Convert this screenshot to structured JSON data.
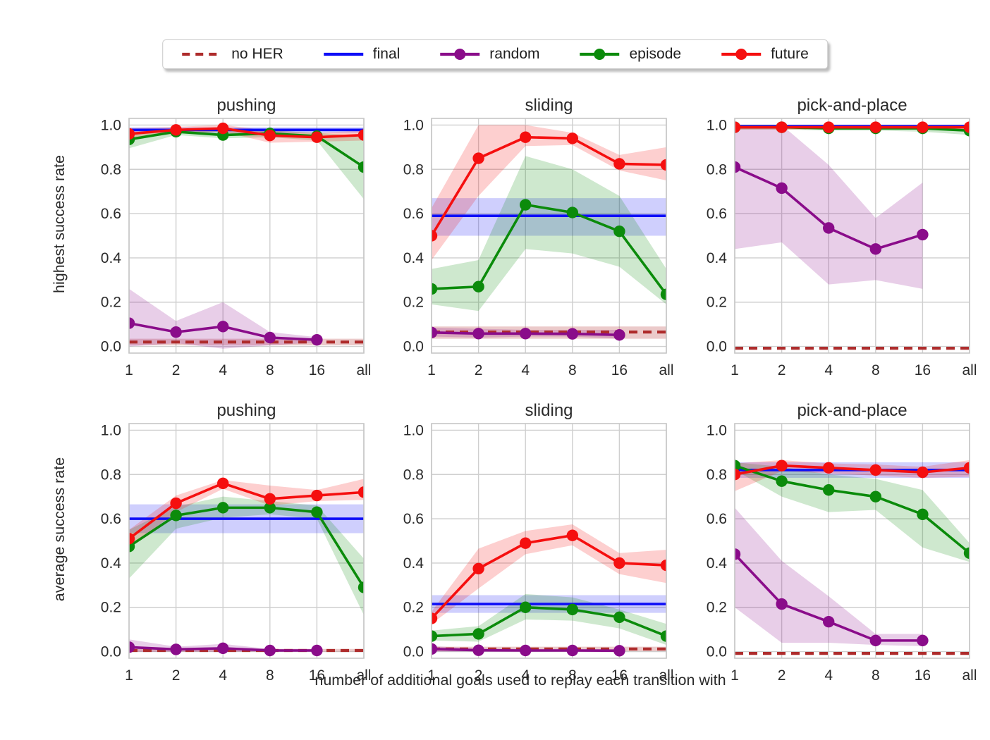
{
  "figure": {
    "xlabel": "number of additional goals used to replay each transition with",
    "row_ylabels": [
      "highest success rate",
      "average success rate"
    ]
  },
  "legend": {
    "items": [
      {
        "label": "no HER",
        "dashed": true,
        "marker": false
      },
      {
        "label": "final",
        "dashed": false,
        "marker": false
      },
      {
        "label": "random",
        "dashed": false,
        "marker": true
      },
      {
        "label": "episode",
        "dashed": false,
        "marker": true
      },
      {
        "label": "future",
        "dashed": false,
        "marker": true
      }
    ]
  },
  "palette": {
    "no HER": "#AE2C2C",
    "final": "#0E0EF7",
    "random": "#8A0C8A",
    "episode": "#0B8B0B",
    "future": "#F50F0F",
    "grid": "#CFCFCF",
    "spine": "#C6C6C6"
  },
  "chart_data": [
    {
      "type": "line",
      "title": "pushing",
      "ylabel": "highest success rate",
      "categories": [
        "1",
        "2",
        "4",
        "8",
        "16",
        "all"
      ],
      "ylim": [
        -0.03,
        1.03
      ],
      "yticks": [
        0.0,
        0.2,
        0.4,
        0.6,
        0.8,
        1.0
      ],
      "ytick_labels": [
        "0.0",
        "0.2",
        "0.4",
        "0.6",
        "0.8",
        "1.0"
      ],
      "series": [
        {
          "name": "no HER",
          "dashed": true,
          "marker": false,
          "values": [
            0.02,
            0.02,
            0.02,
            0.02,
            0.02,
            0.02
          ],
          "band_lo": [
            0.005,
            0.005,
            0.005,
            0.005,
            0.005,
            0.005
          ],
          "band_hi": [
            0.035,
            0.035,
            0.035,
            0.035,
            0.035,
            0.035
          ]
        },
        {
          "name": "final",
          "dashed": false,
          "marker": false,
          "values": [
            0.978,
            0.978,
            0.978,
            0.978,
            0.978,
            0.978
          ],
          "band_lo": [
            0.965,
            0.965,
            0.965,
            0.965,
            0.965,
            0.965
          ],
          "band_hi": [
            0.99,
            0.99,
            0.99,
            0.99,
            0.99,
            0.99
          ]
        },
        {
          "name": "random",
          "dashed": false,
          "marker": true,
          "values": [
            0.105,
            0.065,
            0.09,
            0.04,
            0.03
          ],
          "band_lo": [
            0.0,
            0.015,
            -0.01,
            0.005,
            0.018
          ],
          "band_hi": [
            0.26,
            0.115,
            0.2,
            0.065,
            0.042
          ]
        },
        {
          "name": "episode",
          "dashed": false,
          "marker": true,
          "values": [
            0.935,
            0.97,
            0.955,
            0.962,
            0.95,
            0.81
          ],
          "band_lo": [
            0.895,
            0.955,
            0.94,
            0.945,
            0.93,
            0.665
          ],
          "band_hi": [
            0.965,
            0.985,
            0.972,
            0.975,
            0.965,
            0.95
          ]
        },
        {
          "name": "future",
          "dashed": false,
          "marker": true,
          "values": [
            0.96,
            0.978,
            0.985,
            0.953,
            0.945,
            0.955
          ],
          "band_lo": [
            0.935,
            0.962,
            0.97,
            0.92,
            0.925,
            0.93
          ],
          "band_hi": [
            0.985,
            0.992,
            1.0,
            0.975,
            0.965,
            0.975
          ]
        }
      ]
    },
    {
      "type": "line",
      "title": "sliding",
      "ylabel": "highest success rate",
      "categories": [
        "1",
        "2",
        "4",
        "8",
        "16",
        "all"
      ],
      "ylim": [
        -0.03,
        1.03
      ],
      "yticks": [
        0.0,
        0.2,
        0.4,
        0.6,
        0.8,
        1.0
      ],
      "ytick_labels": [
        "0.0",
        "0.2",
        "0.4",
        "0.6",
        "0.8",
        "1.0"
      ],
      "series": [
        {
          "name": "no HER",
          "dashed": true,
          "marker": false,
          "values": [
            0.065,
            0.065,
            0.065,
            0.065,
            0.065,
            0.065
          ],
          "band_lo": [
            0.035,
            0.035,
            0.035,
            0.035,
            0.035,
            0.035
          ],
          "band_hi": [
            0.09,
            0.09,
            0.09,
            0.09,
            0.09,
            0.09
          ]
        },
        {
          "name": "final",
          "dashed": false,
          "marker": false,
          "values": [
            0.59,
            0.59,
            0.59,
            0.59,
            0.59,
            0.59
          ],
          "band_lo": [
            0.5,
            0.5,
            0.5,
            0.5,
            0.5,
            0.5
          ],
          "band_hi": [
            0.67,
            0.67,
            0.67,
            0.67,
            0.67,
            0.67
          ]
        },
        {
          "name": "random",
          "dashed": false,
          "marker": true,
          "values": [
            0.063,
            0.058,
            0.058,
            0.057,
            0.052
          ],
          "band_lo": [
            0.045,
            0.04,
            0.045,
            0.045,
            0.035
          ],
          "band_hi": [
            0.085,
            0.08,
            0.075,
            0.075,
            0.075
          ]
        },
        {
          "name": "episode",
          "dashed": false,
          "marker": true,
          "values": [
            0.26,
            0.27,
            0.64,
            0.605,
            0.52,
            0.235
          ],
          "band_lo": [
            0.19,
            0.16,
            0.44,
            0.42,
            0.36,
            0.19
          ],
          "band_hi": [
            0.35,
            0.39,
            0.86,
            0.8,
            0.68,
            0.35
          ]
        },
        {
          "name": "future",
          "dashed": false,
          "marker": true,
          "values": [
            0.5,
            0.85,
            0.945,
            0.94,
            0.825,
            0.82
          ],
          "band_lo": [
            0.39,
            0.68,
            0.905,
            0.91,
            0.795,
            0.75
          ],
          "band_hi": [
            0.625,
            1.0,
            1.0,
            0.965,
            0.865,
            0.9
          ]
        }
      ]
    },
    {
      "type": "line",
      "title": "pick-and-place",
      "ylabel": "highest success rate",
      "categories": [
        "1",
        "2",
        "4",
        "8",
        "16",
        "all"
      ],
      "ylim": [
        -0.03,
        1.03
      ],
      "yticks": [
        0.0,
        0.2,
        0.4,
        0.6,
        0.8,
        1.0
      ],
      "ytick_labels": [
        "0.0",
        "0.2",
        "0.4",
        "0.6",
        "0.8",
        "1.0"
      ],
      "series": [
        {
          "name": "no HER",
          "dashed": true,
          "marker": false,
          "values": [
            -0.008,
            -0.008,
            -0.008,
            -0.008,
            -0.008,
            -0.008
          ]
        },
        {
          "name": "final",
          "dashed": false,
          "marker": false,
          "values": [
            0.995,
            0.995,
            0.995,
            0.995,
            0.995,
            0.995
          ],
          "band_lo": [
            0.988,
            0.988,
            0.988,
            0.988,
            0.988,
            0.988
          ],
          "band_hi": [
            1.0,
            1.0,
            1.0,
            1.0,
            1.0,
            1.0
          ]
        },
        {
          "name": "random",
          "dashed": false,
          "marker": true,
          "values": [
            0.81,
            0.715,
            0.535,
            0.44,
            0.505
          ],
          "band_lo": [
            0.44,
            0.47,
            0.28,
            0.3,
            0.26
          ],
          "band_hi": [
            1.0,
            1.0,
            0.82,
            0.58,
            0.74
          ]
        },
        {
          "name": "episode",
          "dashed": false,
          "marker": true,
          "values": [
            0.99,
            0.99,
            0.985,
            0.985,
            0.985,
            0.975
          ],
          "band_lo": [
            0.98,
            0.98,
            0.975,
            0.975,
            0.97,
            0.955
          ],
          "band_hi": [
            1.0,
            1.0,
            0.995,
            0.995,
            0.995,
            0.99
          ]
        },
        {
          "name": "future",
          "dashed": false,
          "marker": true,
          "values": [
            0.99,
            0.99,
            0.99,
            0.99,
            0.99,
            0.99
          ],
          "band_lo": [
            0.98,
            0.98,
            0.98,
            0.98,
            0.98,
            0.98
          ],
          "band_hi": [
            1.0,
            1.0,
            1.0,
            1.0,
            1.0,
            1.0
          ]
        }
      ]
    },
    {
      "type": "line",
      "title": "pushing",
      "ylabel": "average success rate",
      "categories": [
        "1",
        "2",
        "4",
        "8",
        "16",
        "all"
      ],
      "ylim": [
        -0.03,
        1.03
      ],
      "yticks": [
        0.0,
        0.2,
        0.4,
        0.6,
        0.8,
        1.0
      ],
      "ytick_labels": [
        "0.0",
        "0.2",
        "0.4",
        "0.6",
        "0.8",
        "1.0"
      ],
      "series": [
        {
          "name": "no HER",
          "dashed": true,
          "marker": false,
          "values": [
            0.005,
            0.005,
            0.005,
            0.005,
            0.005,
            0.005
          ],
          "band_lo": [
            0.0,
            0.0,
            0.0,
            0.0,
            0.0,
            0.0
          ],
          "band_hi": [
            0.012,
            0.012,
            0.012,
            0.012,
            0.012,
            0.012
          ]
        },
        {
          "name": "final",
          "dashed": false,
          "marker": false,
          "values": [
            0.6,
            0.6,
            0.6,
            0.6,
            0.6,
            0.6
          ],
          "band_lo": [
            0.535,
            0.535,
            0.535,
            0.535,
            0.535,
            0.535
          ],
          "band_hi": [
            0.665,
            0.665,
            0.665,
            0.665,
            0.665,
            0.665
          ]
        },
        {
          "name": "random",
          "dashed": false,
          "marker": true,
          "values": [
            0.02,
            0.01,
            0.015,
            0.005,
            0.005
          ],
          "band_lo": [
            0.0,
            0.0,
            0.0,
            0.0,
            0.0
          ],
          "band_hi": [
            0.055,
            0.022,
            0.035,
            0.012,
            0.012
          ]
        },
        {
          "name": "episode",
          "dashed": false,
          "marker": true,
          "values": [
            0.475,
            0.615,
            0.65,
            0.65,
            0.63,
            0.29
          ],
          "band_lo": [
            0.33,
            0.555,
            0.605,
            0.62,
            0.6,
            0.165
          ],
          "band_hi": [
            0.55,
            0.655,
            0.7,
            0.68,
            0.66,
            0.42
          ]
        },
        {
          "name": "future",
          "dashed": false,
          "marker": true,
          "values": [
            0.51,
            0.67,
            0.76,
            0.69,
            0.705,
            0.72
          ],
          "band_lo": [
            0.47,
            0.63,
            0.735,
            0.66,
            0.68,
            0.685
          ],
          "band_hi": [
            0.55,
            0.705,
            0.775,
            0.75,
            0.73,
            0.78
          ]
        }
      ]
    },
    {
      "type": "line",
      "title": "sliding",
      "ylabel": "average success rate",
      "categories": [
        "1",
        "2",
        "4",
        "8",
        "16",
        "all"
      ],
      "ylim": [
        -0.03,
        1.03
      ],
      "yticks": [
        0.0,
        0.2,
        0.4,
        0.6,
        0.8,
        1.0
      ],
      "ytick_labels": [
        "0.0",
        "0.2",
        "0.4",
        "0.6",
        "0.8",
        "1.0"
      ],
      "series": [
        {
          "name": "no HER",
          "dashed": true,
          "marker": false,
          "values": [
            0.012,
            0.012,
            0.012,
            0.012,
            0.012,
            0.012
          ],
          "band_lo": [
            0.002,
            0.002,
            0.002,
            0.002,
            0.002,
            0.002
          ],
          "band_hi": [
            0.022,
            0.022,
            0.022,
            0.022,
            0.022,
            0.022
          ]
        },
        {
          "name": "final",
          "dashed": false,
          "marker": false,
          "values": [
            0.215,
            0.215,
            0.215,
            0.215,
            0.215,
            0.215
          ],
          "band_lo": [
            0.175,
            0.175,
            0.175,
            0.175,
            0.175,
            0.175
          ],
          "band_hi": [
            0.255,
            0.255,
            0.255,
            0.255,
            0.255,
            0.255
          ]
        },
        {
          "name": "random",
          "dashed": false,
          "marker": true,
          "values": [
            0.012,
            0.006,
            0.005,
            0.005,
            0.004
          ],
          "band_lo": [
            0.0,
            0.0,
            0.0,
            0.0,
            0.0
          ],
          "band_hi": [
            0.025,
            0.014,
            0.012,
            0.012,
            0.01
          ]
        },
        {
          "name": "episode",
          "dashed": false,
          "marker": true,
          "values": [
            0.07,
            0.08,
            0.2,
            0.19,
            0.155,
            0.07
          ],
          "band_lo": [
            0.05,
            0.045,
            0.145,
            0.14,
            0.105,
            0.03
          ],
          "band_hi": [
            0.095,
            0.115,
            0.26,
            0.245,
            0.19,
            0.125
          ]
        },
        {
          "name": "future",
          "dashed": false,
          "marker": true,
          "values": [
            0.15,
            0.375,
            0.49,
            0.525,
            0.4,
            0.39
          ],
          "band_lo": [
            0.125,
            0.285,
            0.44,
            0.48,
            0.35,
            0.31
          ],
          "band_hi": [
            0.18,
            0.465,
            0.545,
            0.575,
            0.445,
            0.46
          ]
        }
      ]
    },
    {
      "type": "line",
      "title": "pick-and-place",
      "ylabel": "average success rate",
      "categories": [
        "1",
        "2",
        "4",
        "8",
        "16",
        "all"
      ],
      "ylim": [
        -0.03,
        1.03
      ],
      "yticks": [
        0.0,
        0.2,
        0.4,
        0.6,
        0.8,
        1.0
      ],
      "ytick_labels": [
        "0.0",
        "0.2",
        "0.4",
        "0.6",
        "0.8",
        "1.0"
      ],
      "series": [
        {
          "name": "no HER",
          "dashed": true,
          "marker": false,
          "values": [
            -0.008,
            -0.008,
            -0.008,
            -0.008,
            -0.008,
            -0.008
          ]
        },
        {
          "name": "final",
          "dashed": false,
          "marker": false,
          "values": [
            0.82,
            0.82,
            0.82,
            0.82,
            0.82,
            0.82
          ],
          "band_lo": [
            0.785,
            0.785,
            0.785,
            0.785,
            0.785,
            0.785
          ],
          "band_hi": [
            0.855,
            0.855,
            0.855,
            0.855,
            0.855,
            0.855
          ]
        },
        {
          "name": "random",
          "dashed": false,
          "marker": true,
          "values": [
            0.44,
            0.215,
            0.135,
            0.05,
            0.05
          ],
          "band_lo": [
            0.2,
            0.04,
            0.04,
            0.03,
            0.025
          ],
          "band_hi": [
            0.65,
            0.41,
            0.25,
            0.08,
            0.08
          ]
        },
        {
          "name": "episode",
          "dashed": false,
          "marker": true,
          "values": [
            0.84,
            0.77,
            0.73,
            0.7,
            0.62,
            0.445
          ],
          "band_lo": [
            0.82,
            0.7,
            0.63,
            0.64,
            0.47,
            0.405
          ],
          "band_hi": [
            0.855,
            0.835,
            0.8,
            0.78,
            0.73,
            0.49
          ]
        },
        {
          "name": "future",
          "dashed": false,
          "marker": true,
          "values": [
            0.8,
            0.84,
            0.83,
            0.82,
            0.81,
            0.83
          ],
          "band_lo": [
            0.725,
            0.815,
            0.805,
            0.795,
            0.785,
            0.79
          ],
          "band_hi": [
            0.85,
            0.865,
            0.85,
            0.845,
            0.835,
            0.865
          ]
        }
      ]
    }
  ]
}
